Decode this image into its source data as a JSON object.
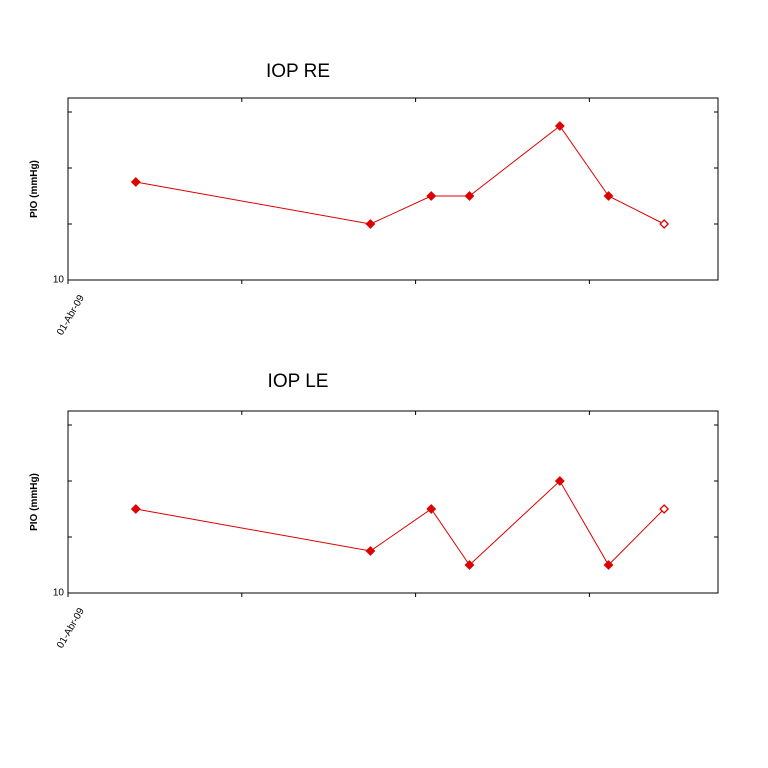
{
  "chart_data": [
    {
      "type": "line",
      "title": "IOP RE",
      "y_label": "PIO (mmHg)",
      "x": [
        0.39,
        1.74,
        2.09,
        2.31,
        2.83,
        3.11,
        3.43
      ],
      "series": [
        {
          "name": "IOP RE",
          "color": "#dd0000",
          "values": [
            17,
            14,
            16,
            16,
            21,
            16,
            14
          ]
        }
      ],
      "xlim": [
        0,
        3.74
      ],
      "xticks": [
        {
          "value": 0,
          "label": "01-Abr-09"
        },
        {
          "value": 1,
          "label": null
        },
        {
          "value": 2,
          "label": null
        },
        {
          "value": 3,
          "label": null
        }
      ],
      "ylim": [
        10,
        23
      ],
      "yticks": [
        10,
        {
          "value": 14,
          "label": null
        },
        {
          "value": 18,
          "label": null
        },
        {
          "value": 22,
          "label": null
        }
      ],
      "last_marker": "hollow"
    },
    {
      "type": "line",
      "title": "IOP LE",
      "y_label": "PIO (mmHg)",
      "x": [
        0.39,
        1.74,
        2.09,
        2.31,
        2.83,
        3.11,
        3.43
      ],
      "series": [
        {
          "name": "IOP LE",
          "color": "#dd0000",
          "values": [
            16,
            13,
            16,
            12,
            18,
            12,
            16
          ]
        }
      ],
      "xlim": [
        0,
        3.74
      ],
      "xticks": [
        {
          "value": 0,
          "label": "01-Abr-09"
        },
        {
          "value": 1,
          "label": null
        },
        {
          "value": 2,
          "label": null
        },
        {
          "value": 3,
          "label": null
        }
      ],
      "ylim": [
        10,
        23
      ],
      "yticks": [
        10,
        {
          "value": 14,
          "label": null
        },
        {
          "value": 18,
          "label": null
        },
        {
          "value": 22,
          "label": null
        }
      ],
      "last_marker": "hollow"
    }
  ]
}
